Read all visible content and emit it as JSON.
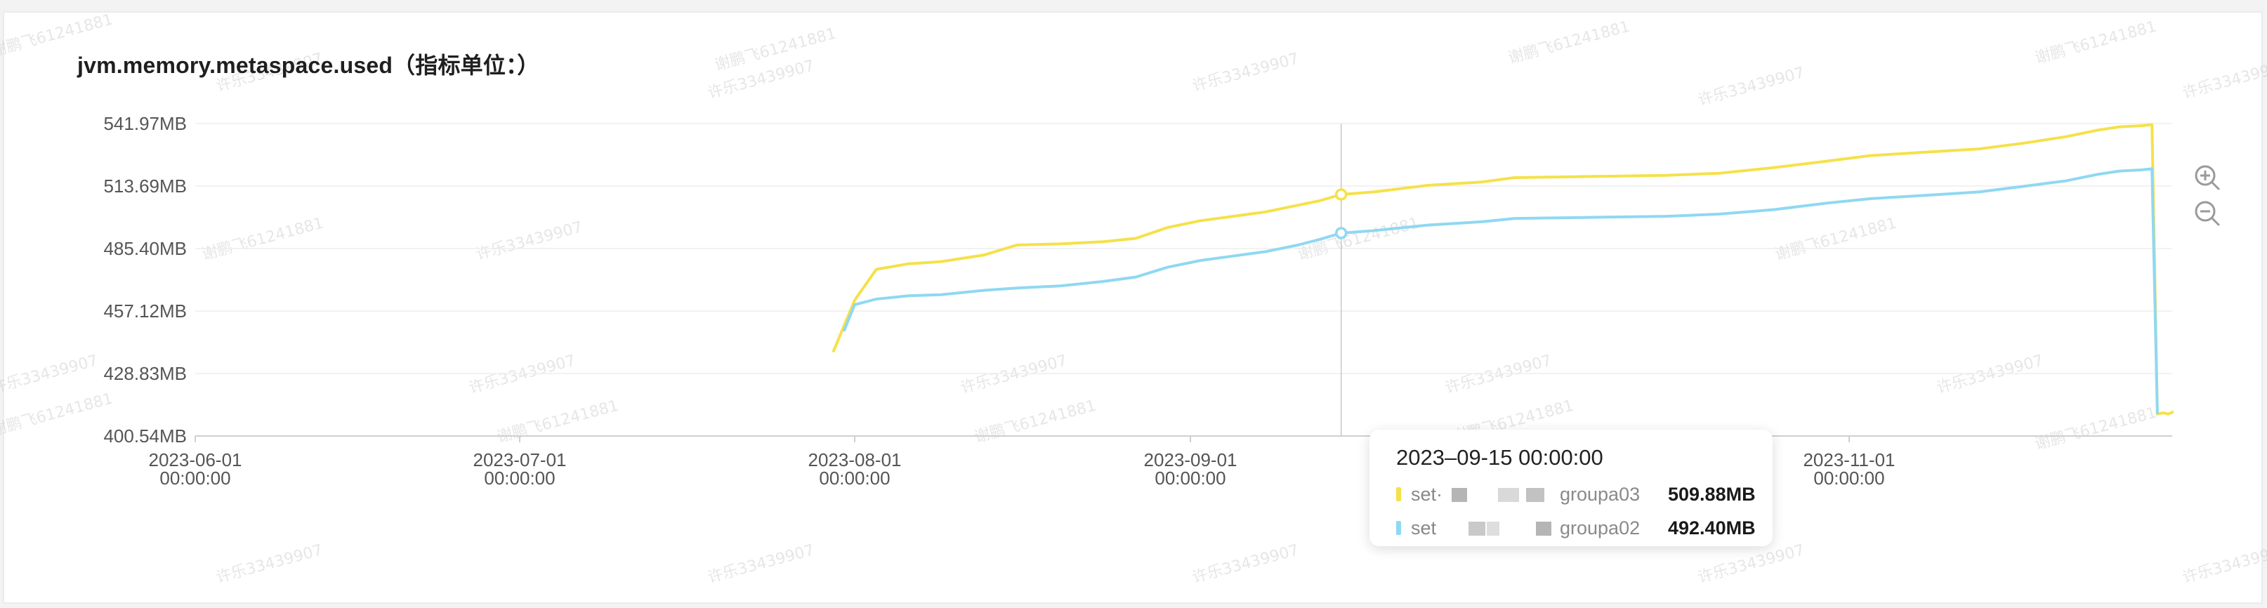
{
  "chart_data": {
    "type": "line",
    "title": "jvm.memory.metaspace.used（指标单位：）",
    "y_unit": "MB",
    "ylim": [
      400.54,
      541.97
    ],
    "y_ticks": [
      "541.97MB",
      "513.69MB",
      "485.40MB",
      "457.12MB",
      "428.83MB",
      "400.54MB"
    ],
    "x_ticks": [
      {
        "date": "2023-06-01",
        "time": "00:00:00"
      },
      {
        "date": "2023-07-01",
        "time": "00:00:00"
      },
      {
        "date": "2023-08-01",
        "time": "00:00:00"
      },
      {
        "date": "2023-09-01",
        "time": "00:00:00"
      },
      {
        "date": "2023-10-01",
        "time": "00:00:00"
      },
      {
        "date": "2023-11-01",
        "time": "00:00:00"
      }
    ],
    "xlim": [
      "2023-06-01",
      "2023-12-01"
    ],
    "grid": "horizontal",
    "series": [
      {
        "name": "set· groupa03",
        "color": "#f5e14a",
        "points": [
          [
            "2023-07-30",
            438.5
          ],
          [
            "2023-08-01",
            462
          ],
          [
            "2023-08-03",
            476
          ],
          [
            "2023-08-06",
            478.5
          ],
          [
            "2023-08-09",
            479.5
          ],
          [
            "2023-08-13",
            482.5
          ],
          [
            "2023-08-16",
            487
          ],
          [
            "2023-08-20",
            487.5
          ],
          [
            "2023-08-24",
            488.5
          ],
          [
            "2023-08-27",
            490
          ],
          [
            "2023-08-30",
            495
          ],
          [
            "2023-09-02",
            498
          ],
          [
            "2023-09-05",
            500
          ],
          [
            "2023-09-08",
            502
          ],
          [
            "2023-09-11",
            505
          ],
          [
            "2023-09-13",
            507
          ],
          [
            "2023-09-15",
            509.88
          ],
          [
            "2023-09-18",
            511
          ],
          [
            "2023-09-23",
            514
          ],
          [
            "2023-09-28",
            515.5
          ],
          [
            "2023-10-01",
            517.5
          ],
          [
            "2023-10-08",
            518
          ],
          [
            "2023-10-15",
            518.5
          ],
          [
            "2023-10-20",
            519.5
          ],
          [
            "2023-10-25",
            522
          ],
          [
            "2023-10-30",
            525
          ],
          [
            "2023-11-03",
            527.5
          ],
          [
            "2023-11-08",
            529
          ],
          [
            "2023-11-13",
            530.5
          ],
          [
            "2023-11-17",
            533
          ],
          [
            "2023-11-21",
            536
          ],
          [
            "2023-11-24",
            539
          ],
          [
            "2023-11-26",
            540.5
          ],
          [
            "2023-11-28",
            541
          ],
          [
            "2023-11-29",
            541.5
          ],
          [
            "2023-11-29.5",
            410.5
          ],
          [
            "2023-11-30",
            411
          ],
          [
            "2023-11-30.5",
            410.5
          ],
          [
            "2023-12-01",
            411.5
          ]
        ]
      },
      {
        "name": "set groupa02",
        "color": "#8fd8f2",
        "points": [
          [
            "2023-07-31",
            448
          ],
          [
            "2023-08-01",
            460
          ],
          [
            "2023-08-03",
            462.5
          ],
          [
            "2023-08-06",
            464
          ],
          [
            "2023-08-09",
            464.5
          ],
          [
            "2023-08-13",
            466.5
          ],
          [
            "2023-08-16",
            467.5
          ],
          [
            "2023-08-20",
            468.5
          ],
          [
            "2023-08-24",
            470.5
          ],
          [
            "2023-08-27",
            472.5
          ],
          [
            "2023-08-30",
            477
          ],
          [
            "2023-09-02",
            480
          ],
          [
            "2023-09-05",
            482
          ],
          [
            "2023-09-08",
            484
          ],
          [
            "2023-09-11",
            487
          ],
          [
            "2023-09-13",
            489.5
          ],
          [
            "2023-09-15",
            492.4
          ],
          [
            "2023-09-18",
            493.5
          ],
          [
            "2023-09-23",
            496
          ],
          [
            "2023-09-28",
            497.5
          ],
          [
            "2023-10-01",
            499
          ],
          [
            "2023-10-08",
            499.5
          ],
          [
            "2023-10-15",
            500
          ],
          [
            "2023-10-20",
            501
          ],
          [
            "2023-10-25",
            503
          ],
          [
            "2023-10-30",
            506
          ],
          [
            "2023-11-03",
            508
          ],
          [
            "2023-11-08",
            509.5
          ],
          [
            "2023-11-13",
            511
          ],
          [
            "2023-11-17",
            513.5
          ],
          [
            "2023-11-21",
            516
          ],
          [
            "2023-11-24",
            519
          ],
          [
            "2023-11-26",
            520.5
          ],
          [
            "2023-11-28",
            521
          ],
          [
            "2023-11-29",
            521.5
          ],
          [
            "2023-11-29.5",
            410.5
          ]
        ]
      }
    ],
    "cursor": {
      "date": "2023-09-15",
      "label": "2023–09-15 00:00:00",
      "rows": [
        {
          "prefix": "set·",
          "name": "groupa03",
          "value": "509.88MB",
          "color": "#f5e14a"
        },
        {
          "prefix": "set",
          "name": "groupa02",
          "value": "492.40MB",
          "color": "#8fd8f2"
        }
      ]
    }
  },
  "toolbar": {
    "zoom_in_icon": "zoom-in-icon",
    "zoom_out_icon": "zoom-out-icon"
  },
  "watermarks": [
    "谢鹏飞61241881",
    "许乐33439907"
  ]
}
